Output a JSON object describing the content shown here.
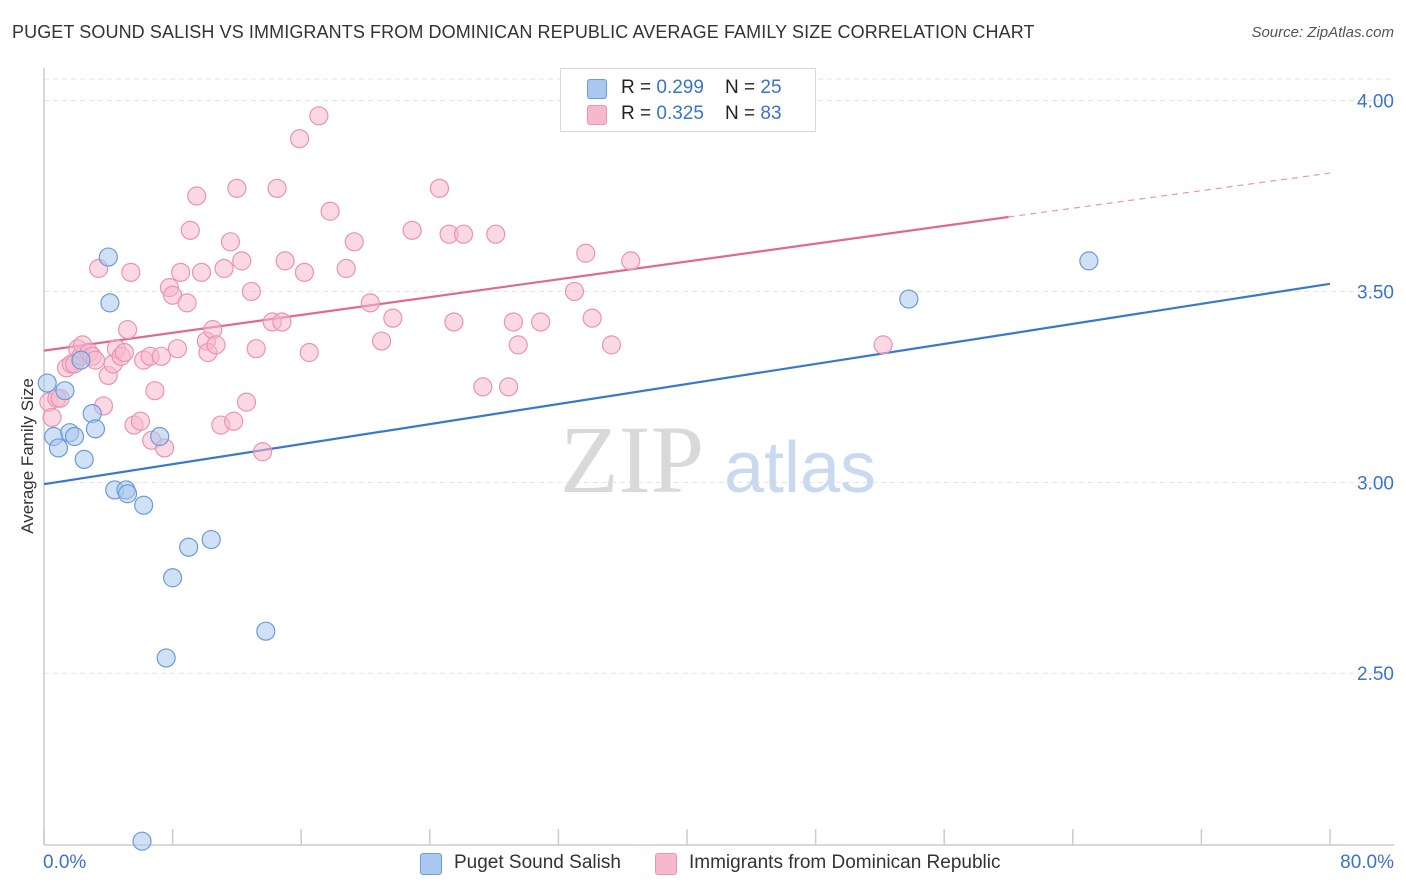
{
  "title": "PUGET SOUND SALISH VS IMMIGRANTS FROM DOMINICAN REPUBLIC AVERAGE FAMILY SIZE CORRELATION CHART",
  "source": "Source: ZipAtlas.com",
  "watermark": {
    "zip": "ZIP",
    "atlas": "atlas"
  },
  "legend_top": {
    "rows": [
      {
        "r_label": "R = ",
        "r_value": "0.299",
        "n_label": "N = ",
        "n_value": "25",
        "color": "#aac8ef"
      },
      {
        "r_label": "R = ",
        "r_value": "0.325",
        "n_label": "N = ",
        "n_value": "83",
        "color": "#f7b8cd"
      }
    ]
  },
  "chart_data": {
    "type": "scatter",
    "title": "PUGET SOUND SALISH VS IMMIGRANTS FROM DOMINICAN REPUBLIC AVERAGE FAMILY SIZE CORRELATION CHART",
    "xlabel": "",
    "ylabel": "Average Family Size",
    "xlim": [
      0,
      80
    ],
    "ylim": [
      2.05,
      4.08
    ],
    "x_tick_labels": [
      "0.0%",
      "80.0%"
    ],
    "y_ticks": [
      2.5,
      3.0,
      3.5,
      4.0
    ],
    "y_tick_labels": [
      "2.50",
      "3.00",
      "3.50",
      "4.00"
    ],
    "grid": true,
    "legend_position": "bottom",
    "series": [
      {
        "name": "Puget Sound Salish",
        "color": "#aac8ef",
        "stroke": "#6b9bd8",
        "line_color": "#3a78cf",
        "trend": {
          "x": [
            0,
            80
          ],
          "y": [
            2.995,
            3.52
          ]
        },
        "points": [
          [
            0.2,
            3.26
          ],
          [
            0.6,
            3.12
          ],
          [
            0.9,
            3.09
          ],
          [
            1.3,
            3.24
          ],
          [
            1.6,
            3.13
          ],
          [
            1.9,
            3.12
          ],
          [
            2.3,
            3.32
          ],
          [
            2.5,
            3.06
          ],
          [
            3.0,
            3.18
          ],
          [
            3.2,
            3.14
          ],
          [
            4.0,
            3.59
          ],
          [
            4.1,
            3.47
          ],
          [
            4.4,
            2.98
          ],
          [
            5.1,
            2.98
          ],
          [
            5.2,
            2.97
          ],
          [
            6.2,
            2.94
          ],
          [
            7.2,
            3.12
          ],
          [
            7.6,
            2.54
          ],
          [
            8.0,
            2.75
          ],
          [
            9.0,
            2.83
          ],
          [
            10.4,
            2.85
          ],
          [
            13.8,
            2.61
          ],
          [
            6.1,
            2.06
          ],
          [
            53.8,
            3.48
          ],
          [
            65.0,
            3.58
          ]
        ]
      },
      {
        "name": "Immigrants from Dominican Republic",
        "color": "#f7b8cd",
        "stroke": "#eb93b1",
        "line_color": "#e06893",
        "trend": {
          "x": [
            0,
            60
          ],
          "y": [
            3.345,
            3.695
          ]
        },
        "trend_dashed": {
          "x": [
            60,
            80
          ],
          "y": [
            3.695,
            3.81
          ]
        },
        "points": [
          [
            0.3,
            3.21
          ],
          [
            0.5,
            3.17
          ],
          [
            0.8,
            3.22
          ],
          [
            1.0,
            3.22
          ],
          [
            1.4,
            3.3
          ],
          [
            1.7,
            3.31
          ],
          [
            1.9,
            3.31
          ],
          [
            2.1,
            3.35
          ],
          [
            2.3,
            3.33
          ],
          [
            2.4,
            3.36
          ],
          [
            2.8,
            3.34
          ],
          [
            3.0,
            3.33
          ],
          [
            3.2,
            3.32
          ],
          [
            3.4,
            3.56
          ],
          [
            3.7,
            3.2
          ],
          [
            4.0,
            3.28
          ],
          [
            4.3,
            3.31
          ],
          [
            4.5,
            3.35
          ],
          [
            4.8,
            3.33
          ],
          [
            5.0,
            3.34
          ],
          [
            5.2,
            3.4
          ],
          [
            5.4,
            3.55
          ],
          [
            5.6,
            3.15
          ],
          [
            6.0,
            3.16
          ],
          [
            6.2,
            3.32
          ],
          [
            6.6,
            3.33
          ],
          [
            6.7,
            3.11
          ],
          [
            6.9,
            3.24
          ],
          [
            7.3,
            3.33
          ],
          [
            7.5,
            3.09
          ],
          [
            7.8,
            3.51
          ],
          [
            8.0,
            3.49
          ],
          [
            8.3,
            3.35
          ],
          [
            8.5,
            3.55
          ],
          [
            8.9,
            3.47
          ],
          [
            9.1,
            3.66
          ],
          [
            9.5,
            3.75
          ],
          [
            9.8,
            3.55
          ],
          [
            10.1,
            3.37
          ],
          [
            10.2,
            3.34
          ],
          [
            10.5,
            3.4
          ],
          [
            10.7,
            3.36
          ],
          [
            11.0,
            3.15
          ],
          [
            11.2,
            3.56
          ],
          [
            11.6,
            3.63
          ],
          [
            11.8,
            3.16
          ],
          [
            12.0,
            3.77
          ],
          [
            12.3,
            3.58
          ],
          [
            12.6,
            3.21
          ],
          [
            12.9,
            3.5
          ],
          [
            13.2,
            3.35
          ],
          [
            13.6,
            3.08
          ],
          [
            14.2,
            3.42
          ],
          [
            14.5,
            3.77
          ],
          [
            14.8,
            3.42
          ],
          [
            15.0,
            3.58
          ],
          [
            15.9,
            3.9
          ],
          [
            16.2,
            3.55
          ],
          [
            16.5,
            3.34
          ],
          [
            17.1,
            3.96
          ],
          [
            17.8,
            3.71
          ],
          [
            18.8,
            3.56
          ],
          [
            19.3,
            3.63
          ],
          [
            20.3,
            3.47
          ],
          [
            21.0,
            3.37
          ],
          [
            21.7,
            3.43
          ],
          [
            22.9,
            3.66
          ],
          [
            24.6,
            3.77
          ],
          [
            25.2,
            3.65
          ],
          [
            25.5,
            3.42
          ],
          [
            26.1,
            3.65
          ],
          [
            27.3,
            3.25
          ],
          [
            28.1,
            3.65
          ],
          [
            28.9,
            3.25
          ],
          [
            29.2,
            3.42
          ],
          [
            29.5,
            3.36
          ],
          [
            30.9,
            3.42
          ],
          [
            33.0,
            3.5
          ],
          [
            33.7,
            3.6
          ],
          [
            34.1,
            3.43
          ],
          [
            35.3,
            3.36
          ],
          [
            36.5,
            3.58
          ],
          [
            52.2,
            3.36
          ]
        ]
      }
    ]
  },
  "colors": {
    "grid": "#e2e2e2",
    "axis": "#cccccc",
    "tick_text": "#3a74c9"
  }
}
